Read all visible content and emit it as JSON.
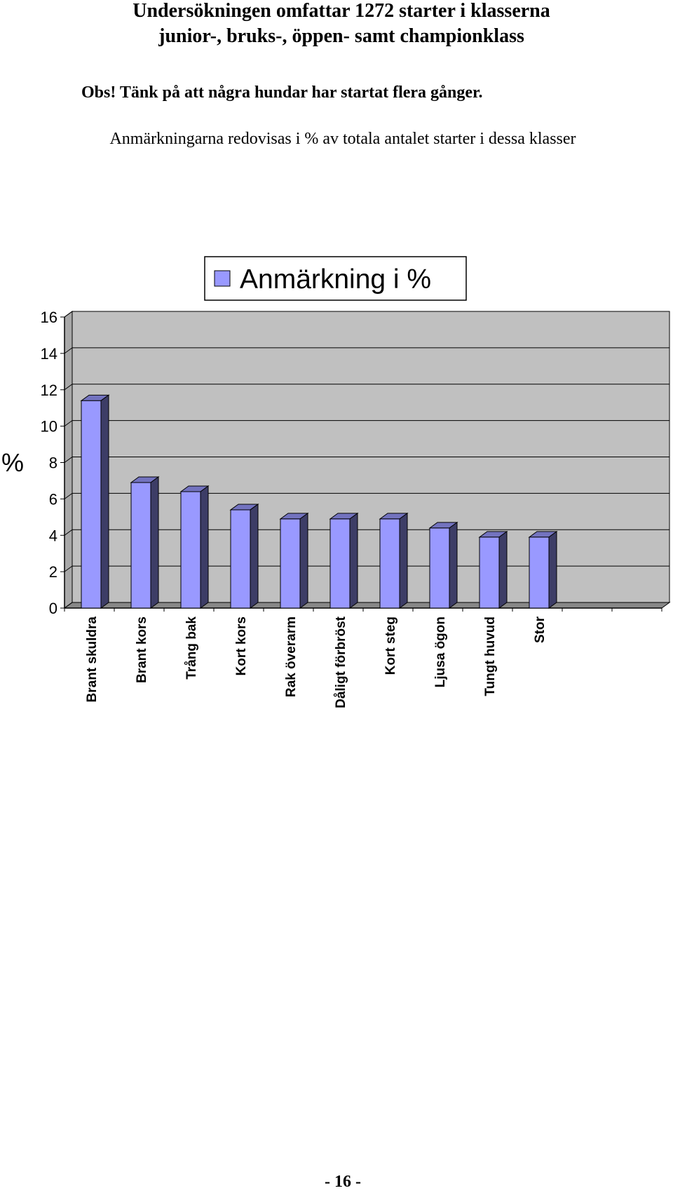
{
  "header": {
    "title_lines": [
      "Undersökningen omfattar 1272 starter i klasserna",
      "junior-, bruks-, öppen- samt championklass"
    ],
    "note": "Obs! Tänk på att några hundar har startat flera gånger.",
    "subtitle": "Anmärkningarna redovisas i % av totala antalet starter i dessa klasser"
  },
  "chart_data": {
    "type": "bar3d",
    "y_label": "%",
    "categories": [
      "Brant skuldra",
      "Brant  kors",
      "Trång bak",
      "Kort kors",
      "Rak överarm",
      "Dåligt förbröst",
      "Kort steg",
      "Ljusa ögon",
      "Tungt huvud",
      "Stor"
    ],
    "series": [
      {
        "name": "Anmärkning i %",
        "color": "#9999ff",
        "values": [
          11.4,
          6.9,
          6.4,
          5.4,
          4.9,
          4.9,
          4.9,
          4.4,
          3.9,
          3.9
        ]
      }
    ],
    "ylim": [
      0,
      16
    ],
    "yticks": [
      0,
      2,
      4,
      6,
      8,
      10,
      12,
      14,
      16
    ],
    "grid": true
  },
  "footer": "- 16 -"
}
